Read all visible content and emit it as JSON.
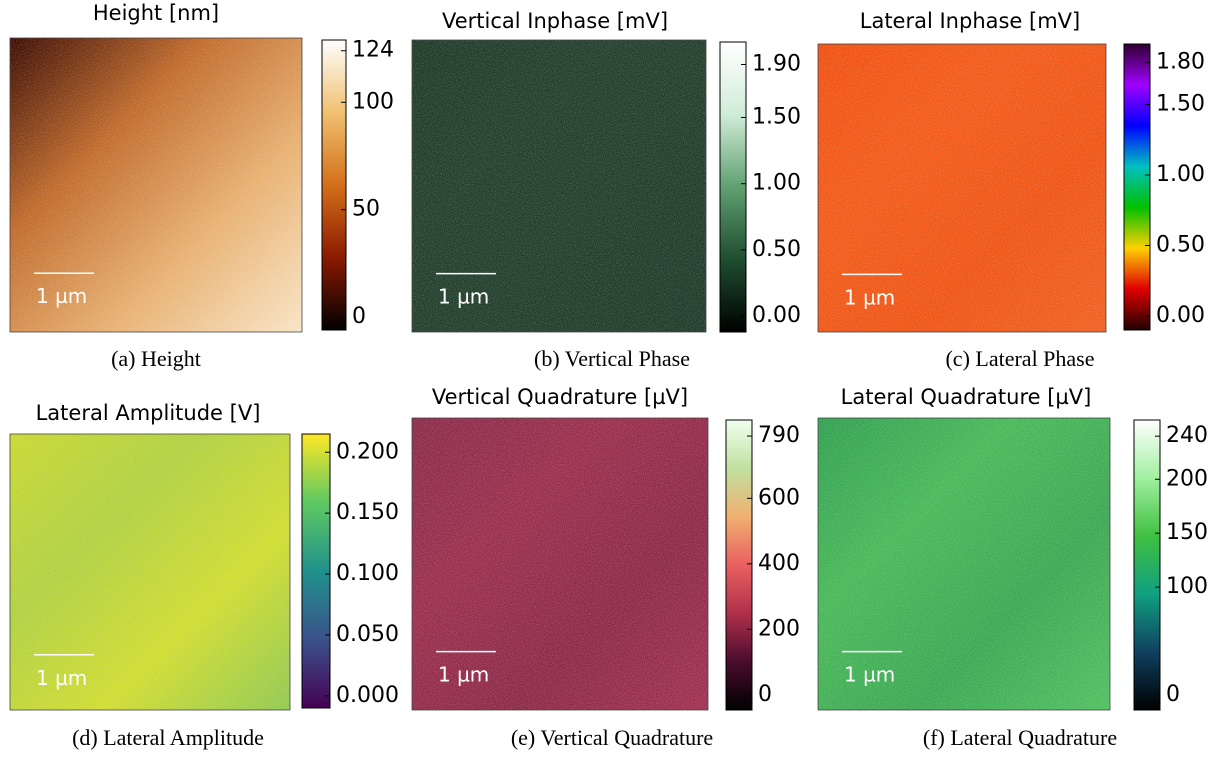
{
  "panels": [
    {
      "title": "Height [nm]",
      "caption": "(a) Height",
      "scale_bar": "1 µm",
      "image_colors": [
        "#3a0a00",
        "#c06a2a",
        "#e8b070",
        "#f8e4c4"
      ],
      "colorbar": {
        "lim": [
          -6,
          129
        ],
        "ticks": [
          0,
          50,
          100,
          124
        ],
        "colormap": [
          "#000000",
          "#8b1a00",
          "#d4701a",
          "#f0c070",
          "#ffffff"
        ]
      }
    },
    {
      "title": "Vertical Inphase [mV]",
      "caption": "(b) Vertical Phase",
      "scale_bar": "1 µm",
      "image_colors": [
        "#1f3a27",
        "#22402b",
        "#213e2a",
        "#1f3b28"
      ],
      "colorbar": {
        "lim": [
          -0.12,
          2.07
        ],
        "ticks": [
          {
            "value": 0,
            "label": "0.00"
          },
          {
            "value": 0.5,
            "label": "0.50"
          },
          {
            "value": 1,
            "label": "1.00"
          },
          {
            "value": 1.5,
            "label": "1.50"
          },
          {
            "value": 1.9,
            "label": "1.90"
          }
        ],
        "colormap": [
          "#000000",
          "#1f4d30",
          "#5fa070",
          "#d0ecd8",
          "#ffffff"
        ]
      }
    },
    {
      "title": "Lateral Inphase [mV]",
      "caption": "(c) Lateral Phase",
      "scale_bar": "1 µm",
      "image_colors": [
        "#f05010",
        "#f25a18",
        "#ee5414",
        "#f06020"
      ],
      "colorbar": {
        "lim": [
          -0.1,
          1.93
        ],
        "ticks": [
          {
            "value": 0,
            "label": "0.00"
          },
          {
            "value": 0.5,
            "label": "0.50"
          },
          {
            "value": 1,
            "label": "1.00"
          },
          {
            "value": 1.5,
            "label": "1.50"
          },
          {
            "value": 1.8,
            "label": "1.80"
          }
        ],
        "colormap": [
          "#200000",
          "#e00000",
          "#ffd000",
          "#00c000",
          "#00c0c0",
          "#0000ff",
          "#a000ff",
          "#300030"
        ]
      }
    },
    {
      "title": "Lateral Amplitude [V]",
      "caption": "(d) Lateral Amplitude",
      "scale_bar": "1 µm",
      "image_colors": [
        "#c8d830",
        "#b0d040",
        "#d0dc30",
        "#90c850"
      ],
      "colorbar": {
        "lim": [
          -0.01,
          0.215
        ],
        "ticks": [
          {
            "value": 0,
            "label": "0.000"
          },
          {
            "value": 0.05,
            "label": "0.050"
          },
          {
            "value": 0.1,
            "label": "0.100"
          },
          {
            "value": 0.15,
            "label": "0.150"
          },
          {
            "value": 0.2,
            "label": "0.200"
          }
        ],
        "colormap": [
          "#440154",
          "#3b528b",
          "#21918c",
          "#5ec962",
          "#fde725"
        ]
      }
    },
    {
      "title": "Vertical Quadrature [µV]",
      "caption": "(e) Vertical Quadrature",
      "scale_bar": "1 µm",
      "image_colors": [
        "#8a2a4a",
        "#9a2e4c",
        "#8c2848",
        "#a03050"
      ],
      "colorbar": {
        "lim": [
          -46,
          839
        ],
        "ticks": [
          0,
          200,
          400,
          600,
          790
        ],
        "colormap": [
          "#000000",
          "#4a0c2e",
          "#b0304a",
          "#e86060",
          "#f0b070",
          "#c0e0a0",
          "#f0fff0"
        ]
      }
    },
    {
      "title": "Lateral Quadrature [µV]",
      "caption": "(f) Lateral Quadrature",
      "scale_bar": "1 µm",
      "image_colors": [
        "#30a050",
        "#48b858",
        "#3aa852",
        "#50c060"
      ],
      "colorbar": {
        "lim": [
          -14,
          255
        ],
        "ticks": [
          0,
          100,
          150,
          200,
          240
        ],
        "colormap": [
          "#000000",
          "#104060",
          "#10a080",
          "#40c040",
          "#a0f0a0",
          "#ffffff"
        ]
      }
    }
  ]
}
